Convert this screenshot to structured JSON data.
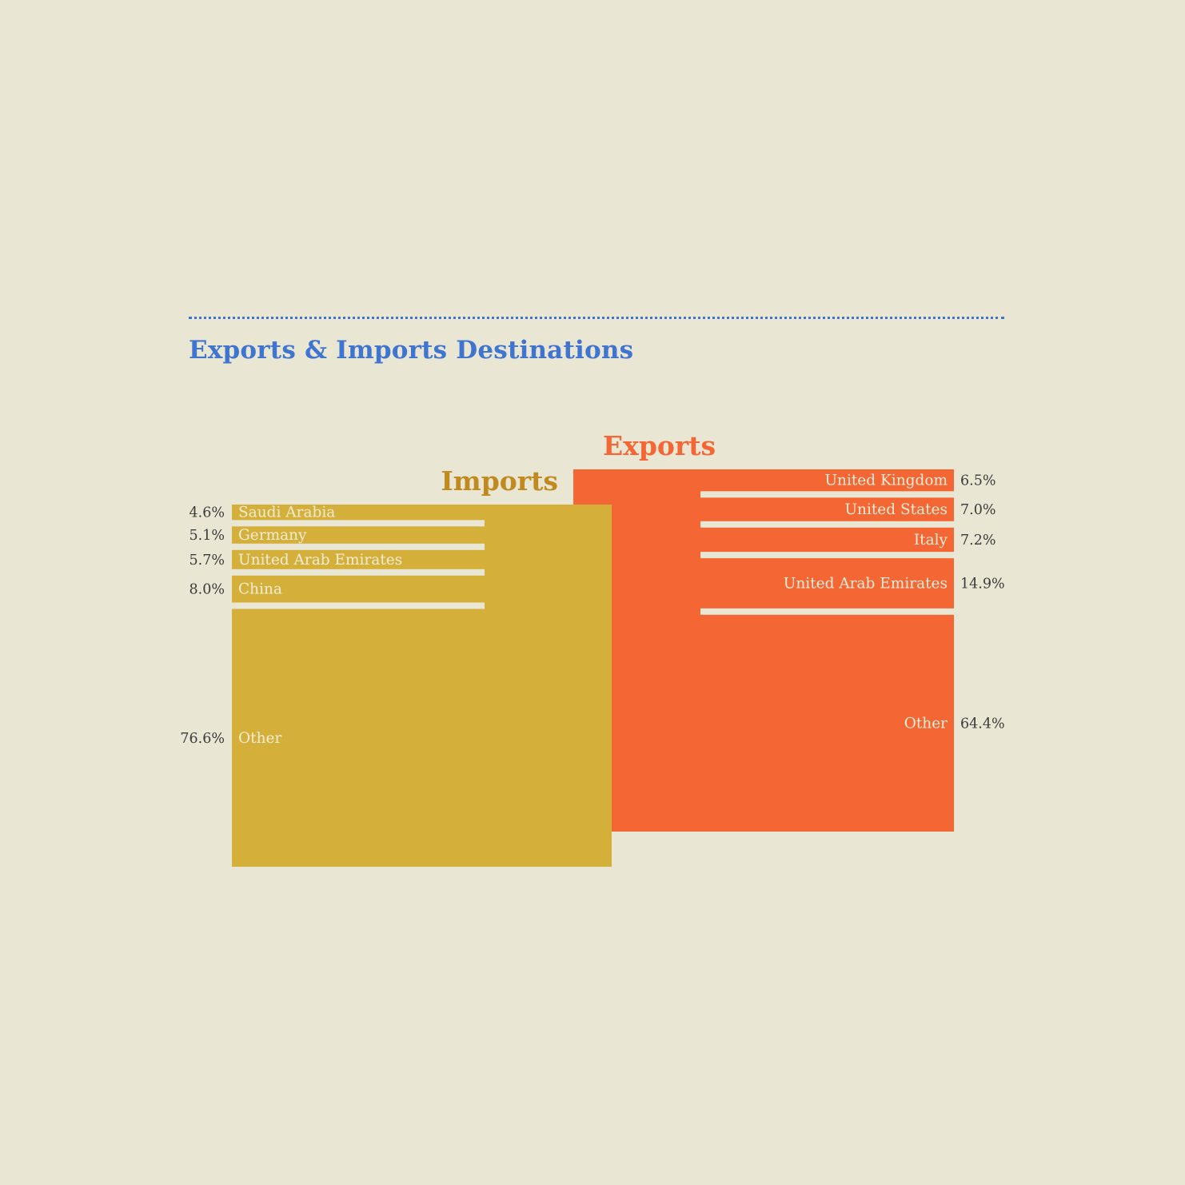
{
  "title": "Exports & Imports Destinations",
  "colors": {
    "background": "#e9e6d4",
    "title": "#3f74d0",
    "imports": "#d4af3a",
    "imports_title": "#c08a1e",
    "exports": "#f46634",
    "segment_text": "#f3ecd7",
    "percent_text": "#3b3b3b"
  },
  "chart_data": {
    "type": "bar",
    "unit": "%",
    "groups": [
      {
        "name": "Imports",
        "categories": [
          "Saudi Arabia",
          "Germany",
          "United Arab Emirates",
          "China",
          "Other"
        ],
        "values": [
          4.6,
          5.1,
          5.7,
          8.0,
          76.6
        ],
        "labels": [
          "4.6%",
          "5.1%",
          "5.7%",
          "8.0%",
          "76.6%"
        ]
      },
      {
        "name": "Exports",
        "categories": [
          "United Kingdom",
          "United States",
          "Italy",
          "United Arab Emirates",
          "Other"
        ],
        "values": [
          6.5,
          7.0,
          7.2,
          14.9,
          64.4
        ],
        "labels": [
          "6.5%",
          "7.0%",
          "7.2%",
          "14.9%",
          "64.4%"
        ]
      }
    ]
  }
}
